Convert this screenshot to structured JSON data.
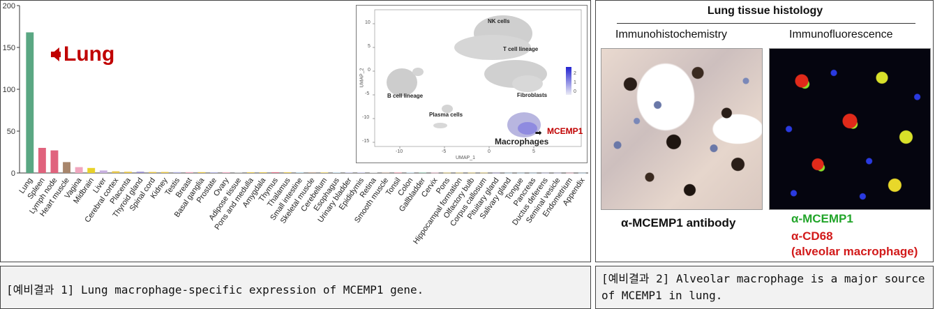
{
  "left": {
    "chart_data": {
      "type": "bar",
      "title": "",
      "xlabel": "",
      "ylabel": "",
      "ylim": [
        0,
        200
      ],
      "yticks": [
        0,
        50,
        100,
        150,
        200
      ],
      "categories": [
        "Lung",
        "Spleen",
        "Lymph node",
        "Heart muscle",
        "Vagina",
        "Midbrain",
        "Liver",
        "Cerebral cortex",
        "Placenta",
        "Thyroid gland",
        "Spinal cord",
        "Kidney",
        "Testis",
        "Breast",
        "Basal ganglia",
        "Prostate",
        "Ovary",
        "Adipose tissue",
        "Pons and medulla",
        "Amygdala",
        "Thymus",
        "Thalamus",
        "Small intestine",
        "Skeletal muscle",
        "Cerebellum",
        "Esophagus",
        "Urinary bladder",
        "Epididymis",
        "Retina",
        "Smooth muscle",
        "Tonsil",
        "Colon",
        "Gallbladder",
        "Cervix",
        "Pons",
        "Hippocampal formation",
        "Olfactory bulb",
        "Corpus callosum",
        "Pituitary gland",
        "Salivary gland",
        "Tongue",
        "Pancreas",
        "Ductus deferens",
        "Seminal vesicle",
        "Endometrium",
        "Appendix"
      ],
      "values": [
        168,
        30,
        27,
        13,
        7,
        6,
        3,
        2,
        1.5,
        1.5,
        1.2,
        1.2,
        1,
        1,
        1,
        0.8,
        0.8,
        0.8,
        0.8,
        0.8,
        0.8,
        0.8,
        0.6,
        0.6,
        0.6,
        0.5,
        0.5,
        0.5,
        0.5,
        0.4,
        0.4,
        0.4,
        0.4,
        0.3,
        0.3,
        0.3,
        0.3,
        0.3,
        0.2,
        0.2,
        0.2,
        0.2,
        0.2,
        0.2,
        0.2,
        0.2
      ],
      "colors": [
        "#5aa783",
        "#e0637d",
        "#e0637d",
        "#a8866c",
        "#f0a6be",
        "#e8d22a",
        "#c8b0e0",
        "#e8c84a",
        "#e8c84a",
        "#9a90d0",
        "#e8c84a",
        "#e8c84a",
        "#b0b0e0",
        "#f0a6be",
        "#e8c84a",
        "#b0b0e0",
        "#f0a6be",
        "#c8c8c8",
        "#e8c84a",
        "#e8c84a",
        "#e0637d",
        "#e8c84a",
        "#a0c8e0",
        "#a8866c",
        "#e8c84a",
        "#a0c8e0",
        "#b0b0e0",
        "#b0b0e0",
        "#c8c8c8",
        "#a8866c",
        "#e0637d",
        "#a0c8e0",
        "#5aa783",
        "#f0a6be",
        "#e8c84a",
        "#e8c84a",
        "#e8c84a",
        "#e8c84a",
        "#9a90d0",
        "#a0c8e0",
        "#a0c8e0",
        "#a0c8e0",
        "#b0b0e0",
        "#b0b0e0",
        "#f0a6be",
        "#a0c8e0"
      ]
    },
    "annotation": "Lung",
    "accent_color": "#c00000",
    "umap": {
      "xlabel": "UMAP_1",
      "ylabel": "UMAP_2",
      "xticks": [
        "-10",
        "-5",
        "0",
        "5"
      ],
      "yticks": [
        "10",
        "5",
        "0",
        "-5",
        "-10",
        "-15"
      ],
      "legend_ticks": [
        "2",
        "1",
        "0"
      ],
      "clusters": [
        "NK cells",
        "T cell lineage",
        "B cell lineage",
        "Fibroblasts",
        "Plasma cells",
        "Macrophages"
      ],
      "gene_label": "MCEMP1"
    }
  },
  "right": {
    "title": "Lung tissue histology",
    "ihc_title": "Immunohistochemistry",
    "if_title": "Immunofluorescence",
    "ihc_label": "α-MCEMP1 antibody",
    "if_label_green": "α-MCEMP1",
    "if_label_red_1": "α-CD68",
    "if_label_red_2": "(alveolar macrophage)"
  },
  "captions": {
    "left": "[예비결과 1] Lung macrophage-specific expression of MCEMP1 gene.",
    "right": "[예비결과 2] Alveolar macrophage is a major source of MCEMP1 in lung."
  }
}
